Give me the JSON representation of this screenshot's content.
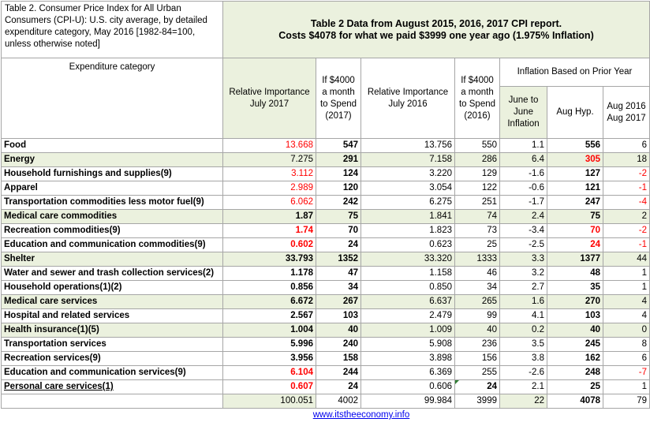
{
  "title": "Table 2. Consumer Price Index for All Urban Consumers (CPI-U): U.S. city average, by detailed expenditure category, May 2016 [1982-84=100, unless otherwise noted]",
  "banner": {
    "line1": "Table 2 Data from August 2015, 2016, 2017 CPI report.",
    "line2": "Costs $4078 for what we paid $3999 one year ago (1.975% Inflation)"
  },
  "headers": {
    "category": "Expenditure category",
    "rel_2017": "Relative Importance July 2017",
    "spend_2017": "If $4000 a month to Spend (2017)",
    "rel_2016": "Relative Importance July 2016",
    "spend_2016": "If $4000 a month to Spend (2016)",
    "inflation_group": "Inflation Based on Prior Year",
    "june": "June to June Inflation",
    "aug_hyp": "Aug Hyp.",
    "aug_diff": "Aug 2016 Aug 2017"
  },
  "rows": [
    {
      "name": "Food",
      "rel2017": "13.668",
      "spend2017": "547",
      "rel2016": "13.756",
      "spend2016": "550",
      "june": "1.1",
      "aughyp": "556",
      "diff": "6"
    },
    {
      "name": "Energy",
      "rel2017": "7.275",
      "spend2017": "291",
      "rel2016": "7.158",
      "spend2016": "286",
      "june": "6.4",
      "aughyp": "305",
      "diff": "18"
    },
    {
      "name": "Household furnishings and supplies(9)",
      "rel2017": "3.112",
      "spend2017": "124",
      "rel2016": "3.220",
      "spend2016": "129",
      "june": "-1.6",
      "aughyp": "127",
      "diff": "-2"
    },
    {
      "name": "Apparel",
      "rel2017": "2.989",
      "spend2017": "120",
      "rel2016": "3.054",
      "spend2016": "122",
      "june": "-0.6",
      "aughyp": "121",
      "diff": "-1"
    },
    {
      "name": "Transportation commodities less motor fuel(9)",
      "rel2017": "6.062",
      "spend2017": "242",
      "rel2016": "6.275",
      "spend2016": "251",
      "june": "-1.7",
      "aughyp": "247",
      "diff": "-4"
    },
    {
      "name": "Medical care commodities",
      "rel2017": "1.87",
      "spend2017": "75",
      "rel2016": "1.841",
      "spend2016": "74",
      "june": "2.4",
      "aughyp": "75",
      "diff": "2"
    },
    {
      "name": "Recreation commodities(9)",
      "rel2017": "1.74",
      "spend2017": "70",
      "rel2016": "1.823",
      "spend2016": "73",
      "june": "-3.4",
      "aughyp": "70",
      "diff": "-2"
    },
    {
      "name": "Education and communication commodities(9)",
      "rel2017": "0.602",
      "spend2017": "24",
      "rel2016": "0.623",
      "spend2016": "25",
      "june": "-2.5",
      "aughyp": "24",
      "diff": "-1"
    },
    {
      "name": "Shelter",
      "rel2017": "33.793",
      "spend2017": "1352",
      "rel2016": "33.320",
      "spend2016": "1333",
      "june": "3.3",
      "aughyp": "1377",
      "diff": "44"
    },
    {
      "name": "Water and sewer and trash collection services(2)",
      "rel2017": "1.178",
      "spend2017": "47",
      "rel2016": "1.158",
      "spend2016": "46",
      "june": "3.2",
      "aughyp": "48",
      "diff": "1"
    },
    {
      "name": "Household operations(1)(2)",
      "rel2017": "0.856",
      "spend2017": "34",
      "rel2016": "0.850",
      "spend2016": "34",
      "june": "2.7",
      "aughyp": "35",
      "diff": "1"
    },
    {
      "name": "Medical care services",
      "rel2017": "6.672",
      "spend2017": "267",
      "rel2016": "6.637",
      "spend2016": "265",
      "june": "1.6",
      "aughyp": "270",
      "diff": "4"
    },
    {
      "name": "Hospital and related services",
      "rel2017": "2.567",
      "spend2017": "103",
      "rel2016": "2.479",
      "spend2016": "99",
      "june": "4.1",
      "aughyp": "103",
      "diff": "4"
    },
    {
      "name": "Health insurance(1)(5)",
      "rel2017": "1.004",
      "spend2017": "40",
      "rel2016": "1.009",
      "spend2016": "40",
      "june": "0.2",
      "aughyp": "40",
      "diff": "0"
    },
    {
      "name": "Transportation services",
      "rel2017": "5.996",
      "spend2017": "240",
      "rel2016": "5.908",
      "spend2016": "236",
      "june": "3.5",
      "aughyp": "245",
      "diff": "8"
    },
    {
      "name": "Recreation services(9)",
      "rel2017": "3.956",
      "spend2017": "158",
      "rel2016": "3.898",
      "spend2016": "156",
      "june": "3.8",
      "aughyp": "162",
      "diff": "6"
    },
    {
      "name": "Education and communication services(9)",
      "rel2017": "6.104",
      "spend2017": "244",
      "rel2016": "6.369",
      "spend2016": "255",
      "june": "-2.6",
      "aughyp": "248",
      "diff": "-7"
    },
    {
      "name": "Personal care services(1)",
      "rel2017": "0.607",
      "spend2017": "24",
      "rel2016": "0.606",
      "spend2016": "24",
      "june": "2.1",
      "aughyp": "25",
      "diff": "1"
    }
  ],
  "totals": {
    "rel2017": "100.051",
    "spend2017": "4002",
    "rel2016": "99.984",
    "spend2016": "3999",
    "june": "22",
    "aughyp": "4078",
    "diff": "79"
  },
  "link": "www.itstheeconomy.info",
  "colors": {
    "highlight_green": "#ebf1de",
    "red_text": "#ff0000",
    "grid": "#a6a6a6"
  }
}
